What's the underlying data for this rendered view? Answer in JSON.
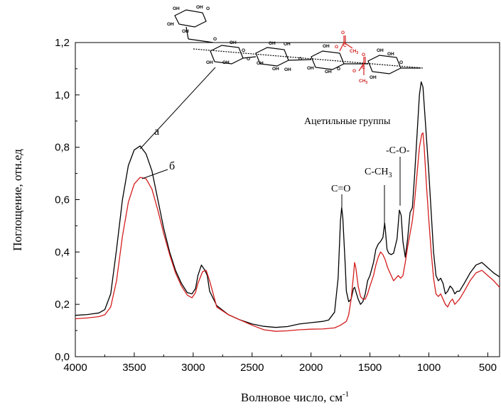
{
  "chart_data": {
    "type": "line",
    "title": "",
    "xlabel": "Волновое число, см",
    "xlabel_sup": "-1",
    "ylabel": "Поглощение, отн.ед",
    "xlim": [
      4000,
      400
    ],
    "x_reversed": true,
    "ylim": [
      0.0,
      1.2
    ],
    "xticks": [
      4000,
      3500,
      3000,
      2500,
      2000,
      1500,
      1000,
      500
    ],
    "xtick_labels": [
      "4000",
      "3500",
      "3000",
      "2500",
      "2000",
      "1500",
      "1000",
      "500"
    ],
    "yticks": [
      0.0,
      0.2,
      0.4,
      0.6,
      0.8,
      1.0,
      1.2
    ],
    "ytick_labels": [
      "0,0",
      "0,2",
      "0,4",
      "0,6",
      "0,8",
      "1,0",
      "1,2"
    ],
    "grid": false,
    "series": [
      {
        "name": "а",
        "color": "#000000",
        "points": [
          [
            4000,
            0.158
          ],
          [
            3900,
            0.161
          ],
          [
            3800,
            0.167
          ],
          [
            3750,
            0.18
          ],
          [
            3700,
            0.24
          ],
          [
            3650,
            0.41
          ],
          [
            3600,
            0.6
          ],
          [
            3550,
            0.73
          ],
          [
            3500,
            0.79
          ],
          [
            3450,
            0.805
          ],
          [
            3400,
            0.775
          ],
          [
            3350,
            0.71
          ],
          [
            3300,
            0.6
          ],
          [
            3250,
            0.49
          ],
          [
            3200,
            0.4
          ],
          [
            3150,
            0.33
          ],
          [
            3100,
            0.28
          ],
          [
            3050,
            0.245
          ],
          [
            3010,
            0.24
          ],
          [
            2980,
            0.26
          ],
          [
            2960,
            0.31
          ],
          [
            2930,
            0.35
          ],
          [
            2900,
            0.33
          ],
          [
            2880,
            0.31
          ],
          [
            2860,
            0.25
          ],
          [
            2800,
            0.195
          ],
          [
            2700,
            0.16
          ],
          [
            2600,
            0.14
          ],
          [
            2500,
            0.125
          ],
          [
            2400,
            0.116
          ],
          [
            2300,
            0.112
          ],
          [
            2200,
            0.115
          ],
          [
            2100,
            0.125
          ],
          [
            2000,
            0.13
          ],
          [
            1900,
            0.135
          ],
          [
            1850,
            0.14
          ],
          [
            1800,
            0.17
          ],
          [
            1770,
            0.3
          ],
          [
            1750,
            0.52
          ],
          [
            1740,
            0.57
          ],
          [
            1730,
            0.53
          ],
          [
            1710,
            0.35
          ],
          [
            1700,
            0.25
          ],
          [
            1680,
            0.21
          ],
          [
            1660,
            0.22
          ],
          [
            1640,
            0.26
          ],
          [
            1630,
            0.265
          ],
          [
            1600,
            0.22
          ],
          [
            1580,
            0.2
          ],
          [
            1560,
            0.21
          ],
          [
            1540,
            0.24
          ],
          [
            1520,
            0.29
          ],
          [
            1500,
            0.31
          ],
          [
            1470,
            0.36
          ],
          [
            1450,
            0.41
          ],
          [
            1430,
            0.43
          ],
          [
            1410,
            0.44
          ],
          [
            1390,
            0.455
          ],
          [
            1375,
            0.51
          ],
          [
            1370,
            0.49
          ],
          [
            1355,
            0.41
          ],
          [
            1340,
            0.395
          ],
          [
            1320,
            0.39
          ],
          [
            1300,
            0.395
          ],
          [
            1270,
            0.45
          ],
          [
            1250,
            0.56
          ],
          [
            1235,
            0.54
          ],
          [
            1220,
            0.44
          ],
          [
            1200,
            0.38
          ],
          [
            1180,
            0.45
          ],
          [
            1160,
            0.55
          ],
          [
            1140,
            0.57
          ],
          [
            1120,
            0.7
          ],
          [
            1100,
            0.85
          ],
          [
            1080,
            1.0
          ],
          [
            1065,
            1.05
          ],
          [
            1050,
            1.03
          ],
          [
            1030,
            0.9
          ],
          [
            1000,
            0.7
          ],
          [
            980,
            0.55
          ],
          [
            960,
            0.4
          ],
          [
            940,
            0.31
          ],
          [
            920,
            0.29
          ],
          [
            900,
            0.3
          ],
          [
            880,
            0.28
          ],
          [
            860,
            0.24
          ],
          [
            840,
            0.25
          ],
          [
            820,
            0.27
          ],
          [
            800,
            0.26
          ],
          [
            780,
            0.24
          ],
          [
            760,
            0.25
          ],
          [
            740,
            0.25
          ],
          [
            700,
            0.28
          ],
          [
            650,
            0.32
          ],
          [
            600,
            0.35
          ],
          [
            550,
            0.36
          ],
          [
            500,
            0.34
          ],
          [
            450,
            0.32
          ],
          [
            400,
            0.305
          ]
        ]
      },
      {
        "name": "б",
        "color": "#d41c1c",
        "points": [
          [
            4000,
            0.145
          ],
          [
            3900,
            0.148
          ],
          [
            3800,
            0.153
          ],
          [
            3750,
            0.16
          ],
          [
            3700,
            0.19
          ],
          [
            3650,
            0.29
          ],
          [
            3600,
            0.46
          ],
          [
            3550,
            0.59
          ],
          [
            3500,
            0.66
          ],
          [
            3450,
            0.685
          ],
          [
            3400,
            0.68
          ],
          [
            3350,
            0.64
          ],
          [
            3300,
            0.56
          ],
          [
            3250,
            0.47
          ],
          [
            3200,
            0.39
          ],
          [
            3150,
            0.32
          ],
          [
            3100,
            0.27
          ],
          [
            3050,
            0.235
          ],
          [
            3010,
            0.225
          ],
          [
            2980,
            0.245
          ],
          [
            2960,
            0.28
          ],
          [
            2920,
            0.325
          ],
          [
            2890,
            0.33
          ],
          [
            2860,
            0.29
          ],
          [
            2830,
            0.24
          ],
          [
            2800,
            0.19
          ],
          [
            2700,
            0.16
          ],
          [
            2600,
            0.14
          ],
          [
            2500,
            0.12
          ],
          [
            2400,
            0.103
          ],
          [
            2300,
            0.097
          ],
          [
            2200,
            0.099
          ],
          [
            2100,
            0.103
          ],
          [
            2000,
            0.105
          ],
          [
            1900,
            0.106
          ],
          [
            1800,
            0.11
          ],
          [
            1750,
            0.12
          ],
          [
            1700,
            0.135
          ],
          [
            1680,
            0.16
          ],
          [
            1660,
            0.22
          ],
          [
            1640,
            0.31
          ],
          [
            1630,
            0.36
          ],
          [
            1620,
            0.34
          ],
          [
            1600,
            0.27
          ],
          [
            1580,
            0.23
          ],
          [
            1560,
            0.22
          ],
          [
            1540,
            0.22
          ],
          [
            1520,
            0.24
          ],
          [
            1500,
            0.27
          ],
          [
            1470,
            0.31
          ],
          [
            1450,
            0.35
          ],
          [
            1430,
            0.38
          ],
          [
            1410,
            0.4
          ],
          [
            1390,
            0.39
          ],
          [
            1370,
            0.37
          ],
          [
            1350,
            0.34
          ],
          [
            1330,
            0.32
          ],
          [
            1300,
            0.29
          ],
          [
            1280,
            0.3
          ],
          [
            1260,
            0.31
          ],
          [
            1240,
            0.3
          ],
          [
            1220,
            0.31
          ],
          [
            1200,
            0.36
          ],
          [
            1180,
            0.42
          ],
          [
            1160,
            0.47
          ],
          [
            1140,
            0.52
          ],
          [
            1120,
            0.6
          ],
          [
            1100,
            0.7
          ],
          [
            1080,
            0.8
          ],
          [
            1060,
            0.85
          ],
          [
            1050,
            0.855
          ],
          [
            1040,
            0.8
          ],
          [
            1020,
            0.65
          ],
          [
            1000,
            0.52
          ],
          [
            980,
            0.4
          ],
          [
            960,
            0.3
          ],
          [
            940,
            0.24
          ],
          [
            920,
            0.23
          ],
          [
            900,
            0.24
          ],
          [
            880,
            0.22
          ],
          [
            860,
            0.2
          ],
          [
            840,
            0.19
          ],
          [
            820,
            0.21
          ],
          [
            800,
            0.22
          ],
          [
            780,
            0.2
          ],
          [
            760,
            0.21
          ],
          [
            740,
            0.22
          ],
          [
            700,
            0.25
          ],
          [
            650,
            0.29
          ],
          [
            600,
            0.32
          ],
          [
            550,
            0.33
          ],
          [
            500,
            0.31
          ],
          [
            450,
            0.29
          ],
          [
            400,
            0.265
          ]
        ]
      }
    ],
    "annotations": [
      {
        "id": "label_a",
        "text": "а"
      },
      {
        "id": "label_b",
        "text": "б"
      },
      {
        "id": "acetyl",
        "text": "Ацетильные группы"
      },
      {
        "id": "co_ester",
        "text": "-C-O-"
      },
      {
        "id": "c_ch3",
        "text": "C-CH",
        "sub": "3"
      },
      {
        "id": "c_double_o",
        "text": "C=O"
      }
    ],
    "molecule_labels": {
      "oh": "OH",
      "o": "O",
      "ch3": "CH",
      "ch3_sub": "3",
      "c": "C"
    }
  }
}
